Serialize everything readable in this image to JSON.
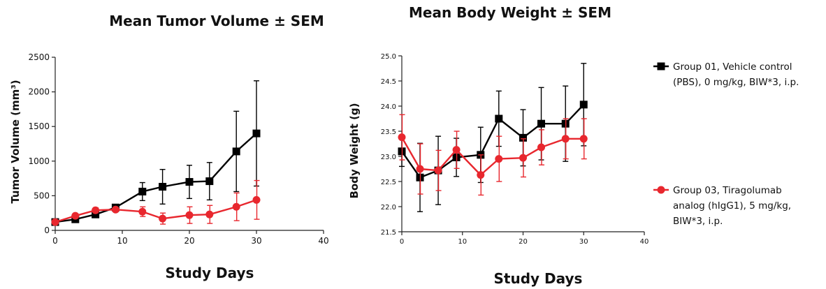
{
  "chart_data": [
    {
      "type": "line",
      "title": "Mean Tumor Volume ± SEM",
      "xlabel": "Study Days",
      "ylabel": "Tumor Volume (mm³)",
      "xlim": [
        0,
        40
      ],
      "ylim": [
        0,
        2500
      ],
      "xticks": [
        "0",
        "10",
        "20",
        "30",
        "40"
      ],
      "yticks": [
        "0",
        "500",
        "1000",
        "1500",
        "2000",
        "2500"
      ],
      "grid": false,
      "series": [
        {
          "name": "Group 01, Vehicle control (PBS), 0 mg/kg, BIW*3, i.p.",
          "color": "#000000",
          "marker": "square",
          "x": [
            0,
            3,
            6,
            9,
            13,
            16,
            20,
            23,
            27,
            30
          ],
          "y": [
            120,
            160,
            230,
            330,
            560,
            630,
            700,
            710,
            1140,
            1400
          ],
          "err": [
            20,
            25,
            30,
            40,
            130,
            250,
            240,
            270,
            580,
            760
          ]
        },
        {
          "name": "Group 03, Tiragolumab analog (hIgG1), 5 mg/kg, BIW*3, i.p.",
          "color": "#e8272e",
          "marker": "circle",
          "x": [
            0,
            3,
            6,
            9,
            13,
            16,
            20,
            23,
            27,
            30
          ],
          "y": [
            120,
            210,
            290,
            300,
            270,
            170,
            220,
            230,
            340,
            440
          ],
          "err": [
            15,
            30,
            35,
            30,
            70,
            80,
            120,
            130,
            200,
            280
          ]
        }
      ]
    },
    {
      "type": "line",
      "title": "Mean Body Weight ± SEM",
      "xlabel": "Study Days",
      "ylabel": "Body Weight (g)",
      "xlim": [
        0,
        40
      ],
      "ylim": [
        21.5,
        25.0
      ],
      "xticks": [
        "0",
        "10",
        "20",
        "30",
        "40"
      ],
      "yticks": [
        "21.5",
        "22.0",
        "22.5",
        "23.0",
        "23.5",
        "24.0",
        "24.5",
        "25.0"
      ],
      "grid": false,
      "series": [
        {
          "name": "Group 01, Vehicle control (PBS), 0 mg/kg, BIW*3, i.p.",
          "color": "#000000",
          "marker": "square",
          "x": [
            0,
            3,
            6,
            9,
            13,
            16,
            20,
            23,
            27,
            30
          ],
          "y": [
            23.1,
            22.58,
            22.72,
            22.98,
            23.03,
            23.75,
            23.37,
            23.65,
            23.65,
            24.03
          ],
          "err": [
            0.3,
            0.68,
            0.68,
            0.38,
            0.55,
            0.55,
            0.56,
            0.72,
            0.75,
            0.82
          ]
        },
        {
          "name": "Group 03, Tiragolumab analog (hIgG1), 5 mg/kg, BIW*3, i.p.",
          "color": "#e8272e",
          "marker": "circle",
          "x": [
            0,
            3,
            6,
            9,
            13,
            16,
            20,
            23,
            27,
            30
          ],
          "y": [
            23.38,
            22.75,
            22.72,
            23.13,
            22.63,
            22.95,
            22.97,
            23.18,
            23.35,
            23.35
          ],
          "err": [
            0.45,
            0.5,
            0.4,
            0.37,
            0.4,
            0.45,
            0.38,
            0.35,
            0.4,
            0.4
          ]
        }
      ]
    }
  ],
  "legend": {
    "placement": "right",
    "items": [
      {
        "lines": [
          "Group 01, Vehicle control",
          "(PBS), 0 mg/kg, BIW*3, i.p."
        ],
        "color": "#000000",
        "marker": "square"
      },
      {
        "lines": [
          "Group 03, Tiragolumab",
          "analog (hIgG1), 5 mg/kg,",
          "BIW*3, i.p."
        ],
        "color": "#e8272e",
        "marker": "circle"
      }
    ]
  }
}
